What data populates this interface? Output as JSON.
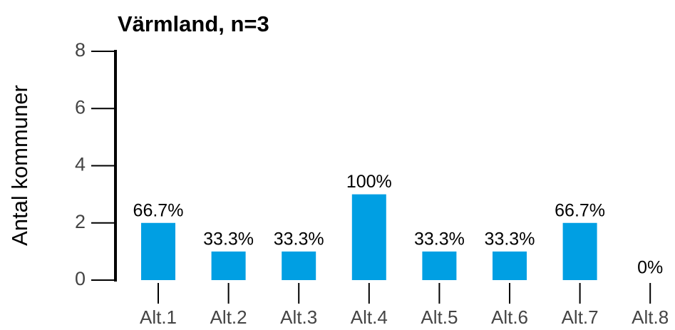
{
  "chart_data": {
    "type": "bar",
    "title": "Värmland, n=3",
    "y_label": "Antal kommuner",
    "categories": [
      "Alt.1",
      "Alt.2",
      "Alt.3",
      "Alt.4",
      "Alt.5",
      "Alt.6",
      "Alt.7",
      "Alt.8"
    ],
    "values": [
      2,
      1,
      1,
      3,
      1,
      1,
      2,
      0
    ],
    "value_labels": [
      "66.7%",
      "33.3%",
      "33.3%",
      "100%",
      "33.3%",
      "33.3%",
      "66.7%",
      "0%"
    ],
    "color": "#009fe3",
    "ylim": [
      0,
      8
    ],
    "yticks": [
      0,
      2,
      4,
      6,
      8
    ],
    "grid": false
  }
}
